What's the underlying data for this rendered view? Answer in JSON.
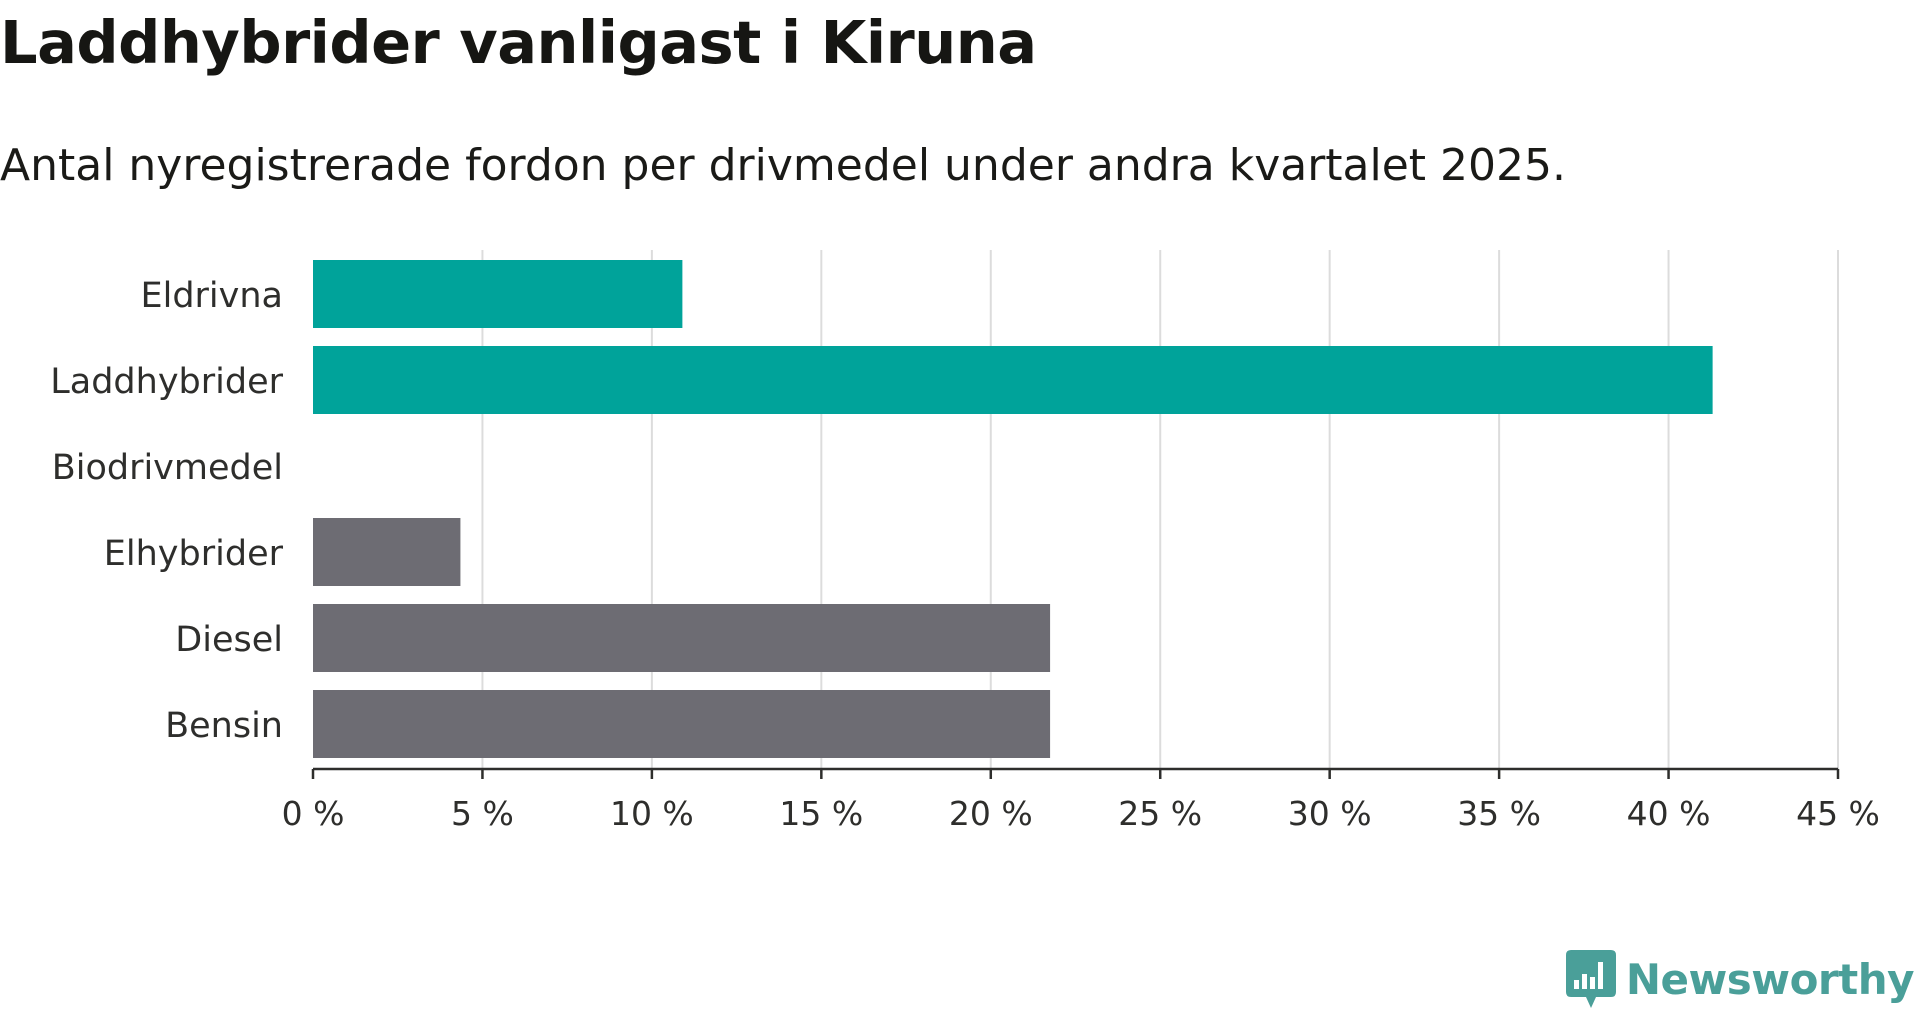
{
  "title": "Laddhybrider vanligast i Kiruna",
  "subtitle": "Antal nyregistrerade fordon per drivmedel under andra kvartalet 2025.",
  "brand": {
    "name": "Newsworthy",
    "color": "#4a9f99",
    "icon": "bar-chart-speech-bubble-icon"
  },
  "chart_data": {
    "type": "bar",
    "orientation": "horizontal",
    "categories": [
      "Eldrivna",
      "Laddhybrider",
      "Biodrivmedel",
      "Elhybrider",
      "Diesel",
      "Bensin"
    ],
    "values": [
      10.9,
      41.3,
      0,
      4.35,
      21.75,
      21.75
    ],
    "bar_colors": [
      "#00a39a",
      "#00a39a",
      "#00a39a",
      "#6d6c73",
      "#6d6c73",
      "#6d6c73"
    ],
    "xlim": [
      0,
      45
    ],
    "x_ticks": [
      0,
      5,
      10,
      15,
      20,
      25,
      30,
      35,
      40,
      45
    ],
    "x_tick_labels": [
      "0 %",
      "5 %",
      "10 %",
      "15 %",
      "20 %",
      "25 %",
      "30 %",
      "35 %",
      "40 %",
      "45 %"
    ],
    "grid": "vertical",
    "grid_color": "#dcdcdc",
    "axis_color": "#2e2e2c"
  }
}
